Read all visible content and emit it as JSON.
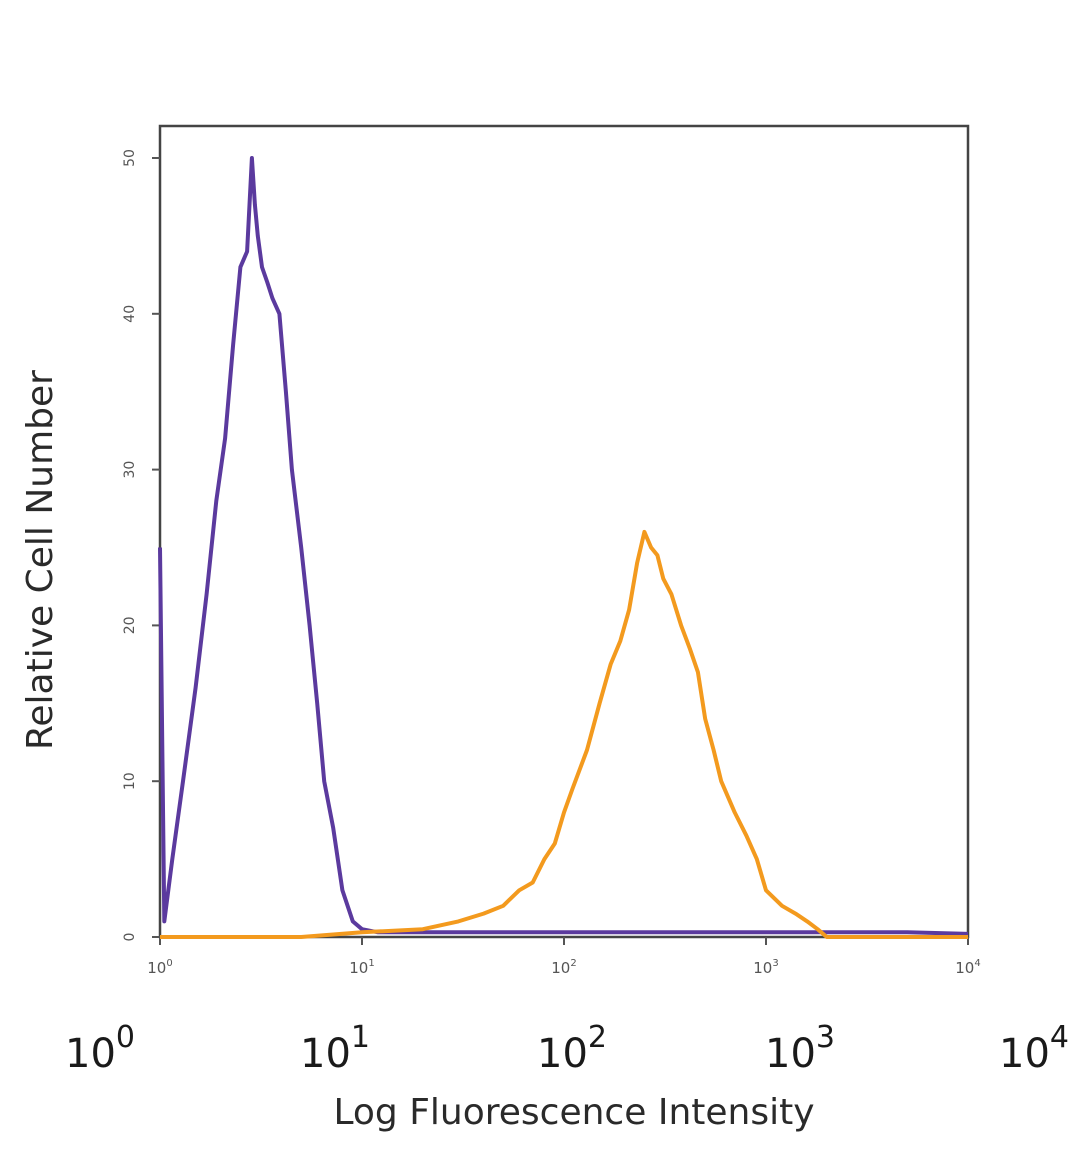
{
  "chart_data": {
    "type": "line",
    "xscale": "log",
    "xlim": [
      1,
      10000
    ],
    "ylim": [
      0,
      50
    ],
    "xlabel": "Log Fluorescence Intensity",
    "ylabel": "Relative Cell Number",
    "x_ticks": [
      {
        "base": "10",
        "exp": "0",
        "value": 1
      },
      {
        "base": "10",
        "exp": "1",
        "value": 10
      },
      {
        "base": "10",
        "exp": "2",
        "value": 100
      },
      {
        "base": "10",
        "exp": "3",
        "value": 1000
      },
      {
        "base": "10",
        "exp": "4",
        "value": 10000
      }
    ],
    "y_ticks": [
      0,
      10,
      20,
      30,
      40,
      50
    ],
    "grid": false,
    "legend": "none",
    "series": [
      {
        "color": "#5b3a9e",
        "x": [
          1.0,
          1.05,
          1.15,
          1.3,
          1.5,
          1.7,
          1.9,
          2.1,
          2.3,
          2.5,
          2.7,
          2.85,
          2.95,
          3.05,
          3.2,
          3.4,
          3.6,
          3.9,
          4.2,
          4.5,
          5.0,
          5.5,
          6.0,
          6.5,
          7.2,
          8.0,
          9.0,
          10.0,
          12.0,
          20.0,
          40.0,
          60.0,
          100.0,
          200.0,
          500.0,
          1000.0,
          3000.0,
          5000.0,
          10000.0
        ],
        "y": [
          25.0,
          1.0,
          5.0,
          10.0,
          16.0,
          22.0,
          28.0,
          32.0,
          38.0,
          43.0,
          44.0,
          50.0,
          47.0,
          45.0,
          43.0,
          42.0,
          41.0,
          40.0,
          35.0,
          30.0,
          25.0,
          20.0,
          15.0,
          10.0,
          7.0,
          3.0,
          1.0,
          0.5,
          0.3,
          0.3,
          0.3,
          0.3,
          0.3,
          0.3,
          0.3,
          0.3,
          0.3,
          0.3,
          0.2
        ]
      },
      {
        "color": "#f39a1e",
        "x": [
          1.0,
          5.0,
          10.0,
          20.0,
          30.0,
          40.0,
          50.0,
          60.0,
          70.0,
          80.0,
          90.0,
          100.0,
          110.0,
          130.0,
          150.0,
          170.0,
          190.0,
          210.0,
          230.0,
          250.0,
          270.0,
          290.0,
          310.0,
          340.0,
          380.0,
          420.0,
          460.0,
          500.0,
          550.0,
          600.0,
          700.0,
          800.0,
          900.0,
          1000.0,
          1200.0,
          1400.0,
          1600.0,
          1800.0,
          2000.0,
          10000.0
        ],
        "y": [
          0.0,
          0.0,
          0.3,
          0.5,
          1.0,
          1.5,
          2.0,
          3.0,
          3.5,
          5.0,
          6.0,
          8.0,
          9.5,
          12.0,
          15.0,
          17.5,
          19.0,
          21.0,
          24.0,
          26.0,
          25.0,
          24.5,
          23.0,
          22.0,
          20.0,
          18.5,
          17.0,
          14.0,
          12.0,
          10.0,
          8.0,
          6.5,
          5.0,
          3.0,
          2.0,
          1.5,
          1.0,
          0.5,
          0.0,
          0.0
        ]
      }
    ]
  }
}
